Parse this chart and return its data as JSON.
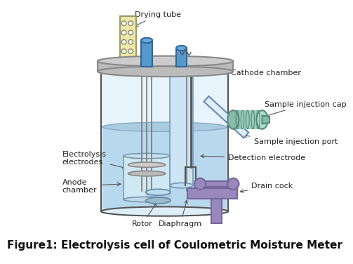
{
  "title": "Figure1: Electrolysis cell of Coulometric Moisture Meter",
  "title_fontsize": 11,
  "labels": {
    "drying_tube": "Drying tube",
    "cathode_chamber": "Cathode chamber",
    "sample_injection_cap": "Sample injection cap",
    "sample_injection_port": "Sample injection port",
    "detection_electrode": "Detection electrode",
    "electrolysis_electrodes": "Electrolysis\nelectrodes",
    "anode_chamber": "Anode\nchamber",
    "rotor": "Rotor",
    "diaphragm": "Diaphragm",
    "drain_cock": "Drain cock"
  },
  "colors": {
    "bg_color": "#ffffff",
    "vessel_outline": "#555555",
    "vessel_fill": "#ddeeff",
    "liquid_fill": "#aad4ee",
    "liquid_dark": "#88bbdd",
    "lid_color": "#cccccc",
    "drying_tube_fill": "#f5f0cc",
    "blue_part": "#5599cc",
    "cathode_tube": "#77aadd",
    "inner_vessel": "#bbddf0",
    "electrode_color": "#888888",
    "drain_cock_color": "#9988bb",
    "sample_cap_color": "#99ccbb",
    "annotation_line": "#555555",
    "text_color": "#222222"
  }
}
